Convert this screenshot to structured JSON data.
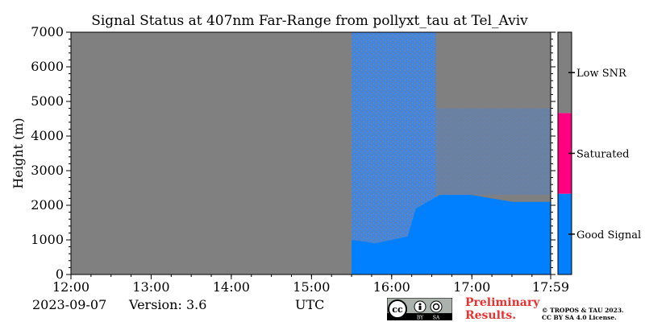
{
  "chart_data": {
    "type": "heatmap",
    "title": "Signal Status at 407nm Far-Range from pollyxt_tau at Tel_Aviv",
    "ylabel": "Height (m)",
    "xlabel": "",
    "x_ticks": [
      "12:00",
      "13:00",
      "14:00",
      "15:00",
      "16:00",
      "17:00",
      "17:59"
    ],
    "x_tick_hours": [
      12,
      13,
      14,
      15,
      16,
      17,
      17.983
    ],
    "xlim_hours": [
      12,
      17.983
    ],
    "y_ticks": [
      "0",
      "1000",
      "2000",
      "3000",
      "4000",
      "5000",
      "6000",
      "7000"
    ],
    "y_tick_values": [
      0,
      1000,
      2000,
      3000,
      4000,
      5000,
      6000,
      7000
    ],
    "ylim": [
      0,
      7000
    ],
    "no_data_until_hour": 15.5,
    "good_signal_top_m": [
      {
        "hour": 15.5,
        "height": 1000
      },
      {
        "hour": 15.8,
        "height": 900
      },
      {
        "hour": 16.2,
        "height": 1100
      },
      {
        "hour": 16.3,
        "height": 1900
      },
      {
        "hour": 16.6,
        "height": 2300
      },
      {
        "hour": 17.0,
        "height": 2300
      },
      {
        "hour": 17.5,
        "height": 2100
      },
      {
        "hour": 17.983,
        "height": 2100
      }
    ],
    "colorbar": {
      "categories": [
        {
          "label": "Good Signal",
          "color": "#0080ff"
        },
        {
          "label": "Saturated",
          "color": "#ff0080"
        },
        {
          "label": "Low SNR",
          "color": "#808080"
        }
      ]
    }
  },
  "footer": {
    "date": "2023-09-07",
    "version": "Version: 3.6",
    "xunit": "UTC",
    "preliminary_line1": "Preliminary",
    "preliminary_line2": "Results.",
    "license_line1": "© TROPOS & TAU 2023.",
    "license_line2": "CC BY SA 4.0 License."
  },
  "logo": {
    "cc_text": "cc",
    "by_text": "BY",
    "sa_text": "SA"
  }
}
